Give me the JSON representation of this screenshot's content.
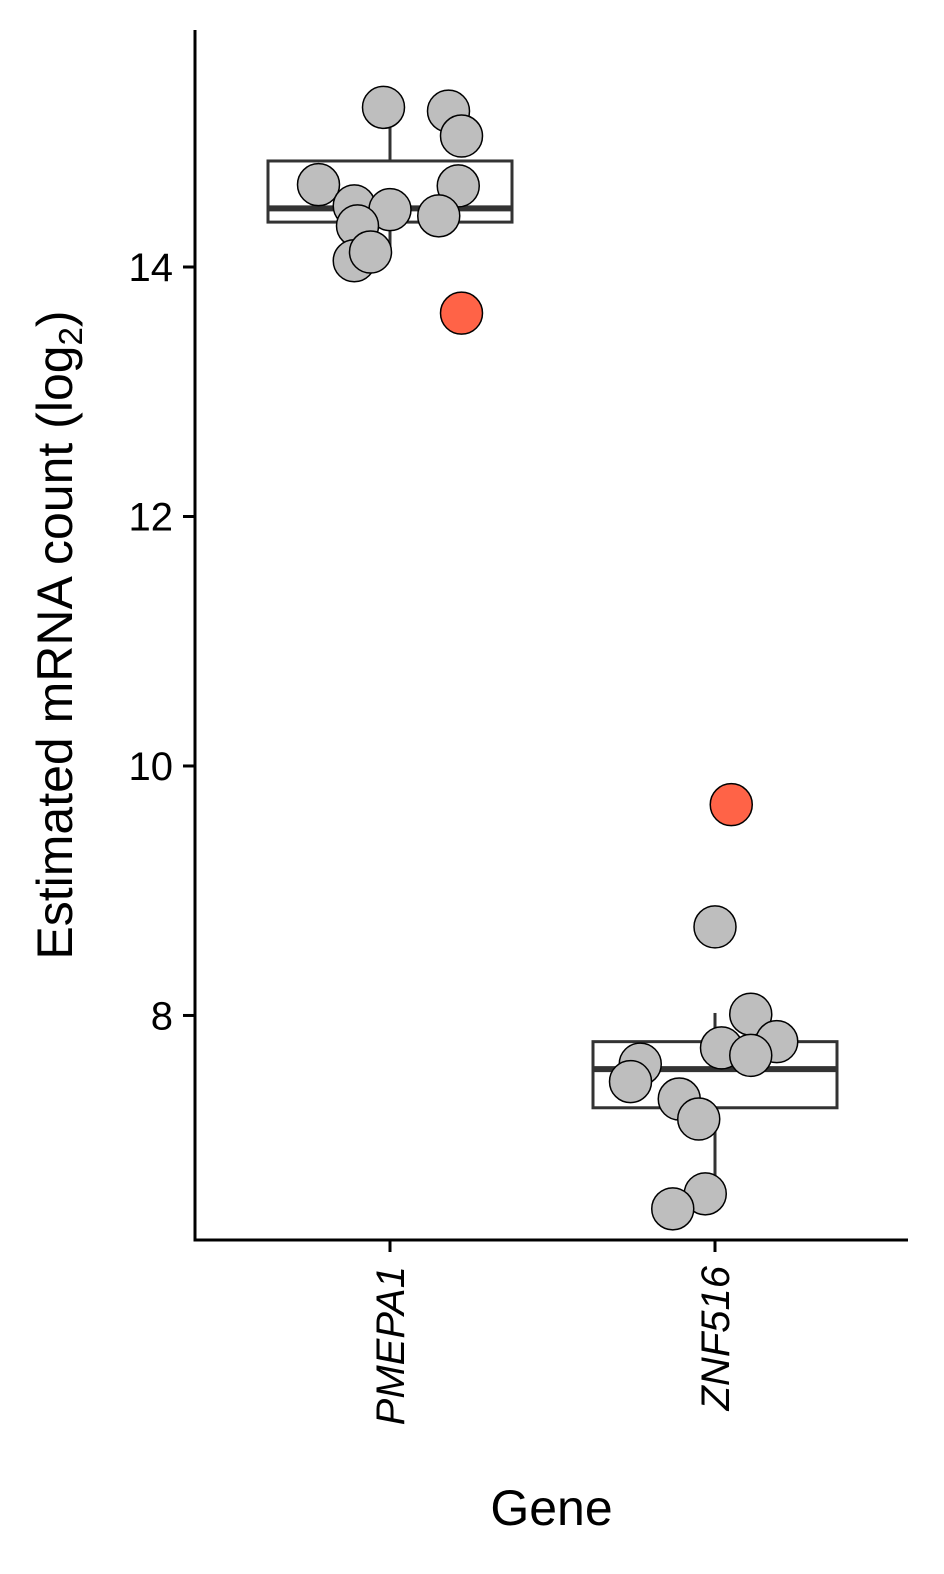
{
  "chart_data": {
    "type": "box",
    "title": "",
    "xlabel": "Gene",
    "ylabel": "Estimated mRNA count (log",
    "ylabel_subscript": "2",
    "ylabel_close": ")",
    "ylim": [
      6.2,
      15.9
    ],
    "yticks": [
      8,
      10,
      12,
      14
    ],
    "categories": [
      "PMEPA1",
      "ZNF516"
    ],
    "grid": false,
    "legend": "none",
    "colors": {
      "normal": "#bebebe",
      "highlight": "#ff6347",
      "box": "#333333",
      "axis": "#000000"
    },
    "boxes": [
      {
        "category": "PMEPA1",
        "whisker_low": 14.08,
        "q1": 14.36,
        "median": 14.47,
        "q3": 14.85,
        "whisker_high": 15.28
      },
      {
        "category": "ZNF516",
        "whisker_low": 6.58,
        "q1": 7.26,
        "median": 7.57,
        "q3": 7.79,
        "whisker_high": 8.02
      }
    ],
    "points": [
      {
        "category": "PMEPA1",
        "jitter": -0.02,
        "y": 15.28,
        "highlight": false
      },
      {
        "category": "PMEPA1",
        "jitter": 0.18,
        "y": 15.25,
        "highlight": false
      },
      {
        "category": "PMEPA1",
        "jitter": 0.22,
        "y": 15.05,
        "highlight": false
      },
      {
        "category": "PMEPA1",
        "jitter": -0.22,
        "y": 14.66,
        "highlight": false
      },
      {
        "category": "PMEPA1",
        "jitter": 0.21,
        "y": 14.65,
        "highlight": false
      },
      {
        "category": "PMEPA1",
        "jitter": -0.11,
        "y": 14.49,
        "highlight": false
      },
      {
        "category": "PMEPA1",
        "jitter": 0.0,
        "y": 14.46,
        "highlight": false
      },
      {
        "category": "PMEPA1",
        "jitter": 0.15,
        "y": 14.41,
        "highlight": false
      },
      {
        "category": "PMEPA1",
        "jitter": -0.1,
        "y": 14.33,
        "highlight": false
      },
      {
        "category": "PMEPA1",
        "jitter": -0.11,
        "y": 14.05,
        "highlight": false
      },
      {
        "category": "PMEPA1",
        "jitter": -0.06,
        "y": 14.12,
        "highlight": false
      },
      {
        "category": "PMEPA1",
        "jitter": 0.22,
        "y": 13.63,
        "highlight": true
      },
      {
        "category": "ZNF516",
        "jitter": 0.05,
        "y": 9.69,
        "highlight": true
      },
      {
        "category": "ZNF516",
        "jitter": 0.0,
        "y": 8.71,
        "highlight": false
      },
      {
        "category": "ZNF516",
        "jitter": 0.11,
        "y": 8.01,
        "highlight": false
      },
      {
        "category": "ZNF516",
        "jitter": 0.19,
        "y": 7.79,
        "highlight": false
      },
      {
        "category": "ZNF516",
        "jitter": 0.02,
        "y": 7.74,
        "highlight": false
      },
      {
        "category": "ZNF516",
        "jitter": 0.11,
        "y": 7.68,
        "highlight": false
      },
      {
        "category": "ZNF516",
        "jitter": -0.23,
        "y": 7.61,
        "highlight": false
      },
      {
        "category": "ZNF516",
        "jitter": -0.26,
        "y": 7.47,
        "highlight": false
      },
      {
        "category": "ZNF516",
        "jitter": -0.11,
        "y": 7.33,
        "highlight": false
      },
      {
        "category": "ZNF516",
        "jitter": -0.05,
        "y": 7.17,
        "highlight": false
      },
      {
        "category": "ZNF516",
        "jitter": -0.03,
        "y": 6.57,
        "highlight": false
      },
      {
        "category": "ZNF516",
        "jitter": -0.13,
        "y": 6.45,
        "highlight": false
      }
    ]
  }
}
